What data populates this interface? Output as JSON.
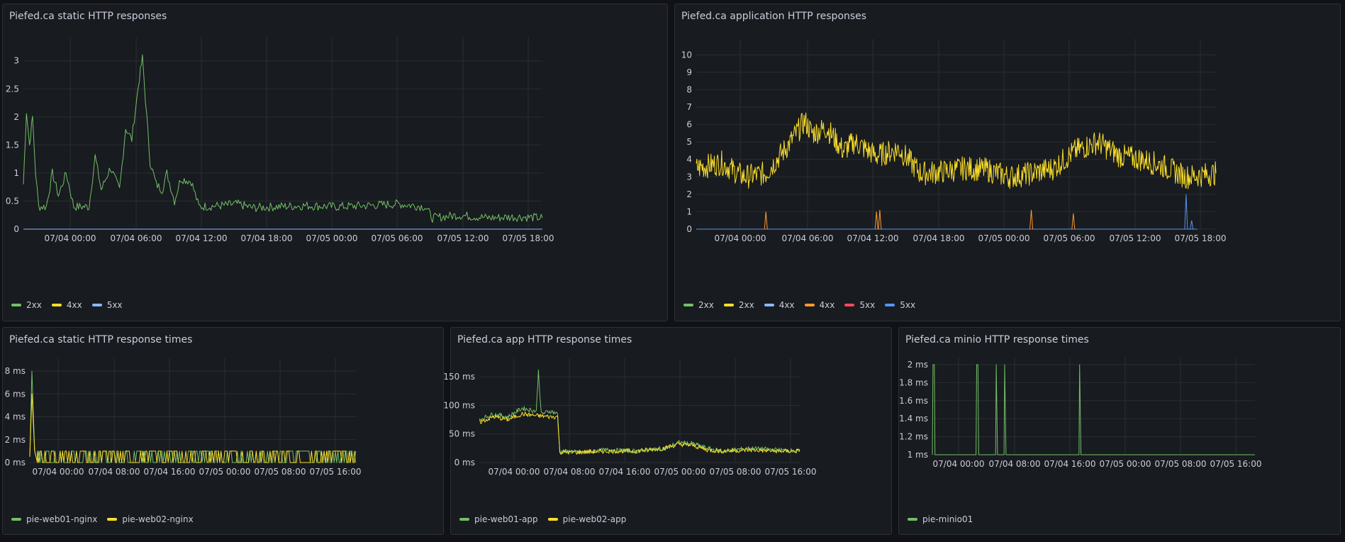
{
  "panels": [
    {
      "id": "p1",
      "title": "Piefed.ca static HTTP responses",
      "legend": [
        {
          "label": "2xx",
          "color": "#73bf69"
        },
        {
          "label": "4xx",
          "color": "#fade2a"
        },
        {
          "label": "5xx",
          "color": "#8ab8ff"
        }
      ],
      "chart_data": {
        "type": "line",
        "title": "Piefed.ca static HTTP responses",
        "x_ticks": [
          "07/04 00:00",
          "07/04 06:00",
          "07/04 12:00",
          "07/04 18:00",
          "07/05 00:00",
          "07/05 06:00",
          "07/05 12:00",
          "07/05 18:00"
        ],
        "x_range_hours": [
          -2.5,
          19.5
        ],
        "y_ticks": [
          "0",
          "0.5",
          "1",
          "1.5",
          "2",
          "2.5",
          "3"
        ],
        "y_tick_values": [
          0,
          0.5,
          1,
          1.5,
          2,
          2.5,
          3
        ],
        "ylim": [
          0,
          3.3
        ],
        "series": [
          {
            "name": "2xx",
            "color": "#73bf69",
            "points": [
              [
                -2.5,
                0.8
              ],
              [
                -2.3,
                2.1
              ],
              [
                -2.1,
                1.5
              ],
              [
                -1.9,
                2.0
              ],
              [
                -1.7,
                1.0
              ],
              [
                -1.5,
                0.4
              ],
              [
                -1.0,
                0.4
              ],
              [
                -0.6,
                1.0
              ],
              [
                -0.2,
                0.6
              ],
              [
                0.3,
                1.0
              ],
              [
                0.8,
                0.4
              ],
              [
                1.8,
                0.4
              ],
              [
                2.2,
                1.3
              ],
              [
                2.6,
                0.7
              ],
              [
                3.2,
                1.1
              ],
              [
                3.8,
                0.7
              ],
              [
                4.2,
                1.8
              ],
              [
                4.6,
                1.6
              ],
              [
                5.1,
                2.7
              ],
              [
                5.3,
                3.05
              ],
              [
                5.5,
                2.3
              ],
              [
                5.8,
                1.2
              ],
              [
                6.2,
                0.8
              ],
              [
                6.6,
                0.7
              ],
              [
                6.9,
                1.0
              ],
              [
                7.4,
                0.5
              ],
              [
                7.8,
                0.9
              ],
              [
                8.5,
                0.85
              ],
              [
                9.0,
                0.4
              ],
              [
                10.5,
                0.42
              ],
              [
                11.5,
                0.45
              ],
              [
                12.5,
                0.38
              ],
              [
                14.0,
                0.4
              ],
              [
                16.0,
                0.42
              ],
              [
                18.0,
                0.4
              ],
              [
                20.0,
                0.42
              ],
              [
                22.0,
                0.45
              ],
              [
                23.8,
                0.4
              ],
              [
                24.3,
                0.2
              ],
              [
                26.0,
                0.25
              ],
              [
                28.0,
                0.2
              ],
              [
                30.0,
                0.22
              ],
              [
                31.5,
                0.2
              ]
            ]
          },
          {
            "name": "4xx",
            "color": "#fade2a",
            "points": [
              [
                -2.5,
                0.0
              ],
              [
                31.5,
                0.0
              ]
            ]
          },
          {
            "name": "5xx",
            "color": "#8ab8ff",
            "points": [
              [
                -2.5,
                0.0
              ],
              [
                31.5,
                0.0
              ]
            ]
          }
        ]
      }
    },
    {
      "id": "p2",
      "title": "Piefed.ca application HTTP responses",
      "legend": [
        {
          "label": "2xx",
          "color": "#73bf69"
        },
        {
          "label": "2xx",
          "color": "#fade2a"
        },
        {
          "label": "4xx",
          "color": "#8ab8ff"
        },
        {
          "label": "4xx",
          "color": "#ff9830"
        },
        {
          "label": "5xx",
          "color": "#f2495c"
        },
        {
          "label": "5xx",
          "color": "#5794f2"
        }
      ],
      "chart_data": {
        "type": "line",
        "title": "Piefed.ca application HTTP responses",
        "x_ticks": [
          "07/04 00:00",
          "07/04 06:00",
          "07/04 12:00",
          "07/04 18:00",
          "07/05 00:00",
          "07/05 06:00",
          "07/05 12:00",
          "07/05 18:00"
        ],
        "y_ticks": [
          "0",
          "1",
          "2",
          "3",
          "4",
          "5",
          "6",
          "7",
          "8",
          "9",
          "10"
        ],
        "y_tick_values": [
          0,
          1,
          2,
          3,
          4,
          5,
          6,
          7,
          8,
          9,
          10
        ],
        "ylim": [
          0,
          10.5
        ],
        "series": [
          {
            "name": "2xx",
            "color": "#fade2a",
            "points": [
              [
                -4.3,
                3.5
              ],
              [
                -2,
                3.8
              ],
              [
                0,
                3.0
              ],
              [
                2,
                3.2
              ],
              [
                4,
                4.8
              ],
              [
                5.5,
                6.2
              ],
              [
                6.2,
                5.5
              ],
              [
                7.5,
                5.8
              ],
              [
                9,
                4.5
              ],
              [
                10,
                5.0
              ],
              [
                12,
                4.2
              ],
              [
                14,
                4.6
              ],
              [
                16,
                3.2
              ],
              [
                18,
                3.3
              ],
              [
                20,
                3.5
              ],
              [
                22,
                3.4
              ],
              [
                24,
                3.0
              ],
              [
                26,
                3.2
              ],
              [
                28,
                3.5
              ],
              [
                30,
                4.5
              ],
              [
                32,
                5.0
              ],
              [
                34,
                4.2
              ],
              [
                36,
                4.0
              ],
              [
                38,
                3.6
              ],
              [
                40,
                3.0
              ],
              [
                42.7,
                3.2
              ]
            ]
          },
          {
            "name": "4xx",
            "color": "#ff9830",
            "points": [
              [
                -4.3,
                0
              ],
              [
                41,
                0
              ]
            ]
          },
          {
            "name": "5xx",
            "color": "#5794f2",
            "points": [
              [
                -4.3,
                0
              ],
              [
                41,
                0
              ]
            ]
          }
        ]
      }
    },
    {
      "id": "p3",
      "title": "Piefed.ca static HTTP response times",
      "legend": [
        {
          "label": "pie-web01-nginx",
          "color": "#73bf69"
        },
        {
          "label": "pie-web02-nginx",
          "color": "#fade2a"
        }
      ],
      "chart_data": {
        "type": "line",
        "title": "Piefed.ca static HTTP response times",
        "x_ticks": [
          "07/04 00:00",
          "07/04 08:00",
          "07/04 16:00",
          "07/05 00:00",
          "07/05 08:00",
          "07/05 16:00"
        ],
        "y_ticks": [
          "0 ms",
          "2 ms",
          "4 ms",
          "6 ms",
          "8 ms"
        ],
        "y_tick_values": [
          0,
          2,
          4,
          6,
          8
        ],
        "ylim": [
          0,
          8.5
        ],
        "series": [
          {
            "name": "pie-web01-nginx",
            "color": "#73bf69",
            "points": [
              [
                -3.3,
                0.5
              ],
              [
                -3.0,
                8.0
              ],
              [
                -2.6,
                1.0
              ],
              [
                -2.2,
                0.0
              ],
              [
                43.5,
                1.0
              ]
            ]
          },
          {
            "name": "pie-web02-nginx",
            "color": "#fade2a",
            "points": [
              [
                -3.3,
                0.5
              ],
              [
                -3.0,
                6.0
              ],
              [
                -2.6,
                1.0
              ],
              [
                -2.2,
                0.0
              ],
              [
                43.5,
                1.0
              ]
            ]
          }
        ]
      }
    },
    {
      "id": "p4",
      "title": "Piefed.ca app HTTP response times",
      "legend": [
        {
          "label": "pie-web01-app",
          "color": "#73bf69"
        },
        {
          "label": "pie-web02-app",
          "color": "#fade2a"
        }
      ],
      "chart_data": {
        "type": "line",
        "title": "Piefed.ca app HTTP response times",
        "x_ticks": [
          "07/04 00:00",
          "07/04 08:00",
          "07/04 16:00",
          "07/05 00:00",
          "07/05 08:00",
          "07/05 16:00"
        ],
        "y_ticks": [
          "0 ms",
          "50 ms",
          "100 ms",
          "150 ms"
        ],
        "y_tick_values": [
          0,
          50,
          100,
          150
        ],
        "ylim": [
          0,
          170
        ],
        "series": [
          {
            "name": "pie-web01-app",
            "color": "#73bf69",
            "points": [
              [
                -4,
                75
              ],
              [
                -2,
                85
              ],
              [
                0,
                80
              ],
              [
                2,
                95
              ],
              [
                4,
                90
              ],
              [
                4.3,
                160
              ],
              [
                4.7,
                85
              ],
              [
                6,
                90
              ],
              [
                7,
                85
              ],
              [
                7.3,
                20
              ],
              [
                10,
                18
              ],
              [
                14,
                22
              ],
              [
                18,
                20
              ],
              [
                22,
                25
              ],
              [
                24,
                35
              ],
              [
                26,
                33
              ],
              [
                28,
                25
              ],
              [
                30,
                20
              ],
              [
                34,
                25
              ],
              [
                38,
                22
              ],
              [
                41,
                20
              ]
            ]
          },
          {
            "name": "pie-web02-app",
            "color": "#fade2a",
            "points": [
              [
                -4,
                70
              ],
              [
                -2,
                80
              ],
              [
                0,
                75
              ],
              [
                2,
                85
              ],
              [
                4,
                82
              ],
              [
                6,
                80
              ],
              [
                7,
                80
              ],
              [
                7.3,
                18
              ],
              [
                10,
                18
              ],
              [
                14,
                20
              ],
              [
                18,
                20
              ],
              [
                22,
                25
              ],
              [
                24,
                32
              ],
              [
                26,
                30
              ],
              [
                28,
                22
              ],
              [
                30,
                20
              ],
              [
                34,
                22
              ],
              [
                38,
                20
              ],
              [
                41,
                20
              ]
            ]
          }
        ]
      }
    },
    {
      "id": "p5",
      "title": "Piefed.ca minio HTTP response times",
      "legend": [
        {
          "label": "pie-minio01",
          "color": "#73bf69"
        }
      ],
      "chart_data": {
        "type": "line",
        "title": "Piefed.ca minio HTTP response times",
        "x_ticks": [
          "07/04 00:00",
          "07/04 08:00",
          "07/04 16:00",
          "07/05 00:00",
          "07/05 08:00",
          "07/05 16:00"
        ],
        "y_ticks": [
          "1 ms",
          "1.2 ms",
          "1.4 ms",
          "1.6 ms",
          "1.8 ms",
          "2 ms"
        ],
        "y_tick_values": [
          1,
          1.2,
          1.4,
          1.6,
          1.8,
          2
        ],
        "ylim": [
          1,
          2
        ],
        "series": [
          {
            "name": "pie-minio01",
            "color": "#73bf69",
            "points": [
              [
                -3.5,
                1
              ],
              [
                -3.4,
                2
              ],
              [
                -3.2,
                2
              ],
              [
                -3.1,
                1
              ],
              [
                3.2,
                1
              ],
              [
                3.3,
                2
              ],
              [
                3.5,
                2
              ],
              [
                3.6,
                1
              ],
              [
                6.2,
                1
              ],
              [
                6.3,
                2
              ],
              [
                6.5,
                1
              ],
              [
                7.5,
                1
              ],
              [
                7.6,
                2
              ],
              [
                7.8,
                1
              ],
              [
                19,
                1
              ],
              [
                19.1,
                2
              ],
              [
                19.3,
                1
              ],
              [
                46,
                1
              ]
            ]
          }
        ]
      }
    }
  ]
}
